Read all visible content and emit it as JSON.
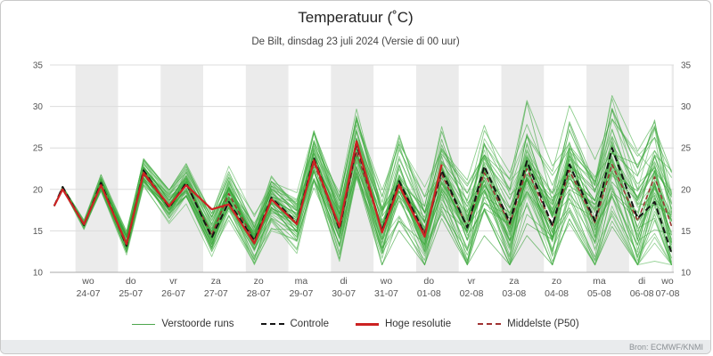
{
  "header": {
    "title": "Temperatuur (˚C)",
    "subtitle": "De Bilt, dinsdag 23 juli 2024 (Versie di 00 uur)"
  },
  "source": "Bron: ECMWF/KNMI",
  "legend": [
    {
      "label": "Verstoorde runs",
      "color": "#4ca64c",
      "style": "solid-thin"
    },
    {
      "label": "Controle",
      "color": "#141414",
      "style": "dashed"
    },
    {
      "label": "Hoge resolutie",
      "color": "#cc2222",
      "style": "solid"
    },
    {
      "label": "Middelste (P50)",
      "color": "#a03232",
      "style": "dashed-thin"
    }
  ],
  "chart_data": {
    "type": "line",
    "title": "Temperatuur (˚C)",
    "subtitle": "De Bilt, dinsdag 23 juli 2024 (Versie di 00 uur)",
    "ylabel": "Temperatuur (˚C)",
    "xlabel": "",
    "y_axis": {
      "min": 10,
      "max": 35,
      "ticks": [
        10,
        15,
        20,
        25,
        30,
        35
      ]
    },
    "x_axis": {
      "start": 23.4,
      "end": 38.05,
      "shaded_days": [
        24,
        26,
        28,
        30,
        32,
        34,
        36,
        38
      ],
      "labels": [
        {
          "day": 24,
          "weekday": "wo",
          "date": "24-07"
        },
        {
          "day": 25,
          "weekday": "do",
          "date": "25-07"
        },
        {
          "day": 26,
          "weekday": "vr",
          "date": "26-07"
        },
        {
          "day": 27,
          "weekday": "za",
          "date": "27-07"
        },
        {
          "day": 28,
          "weekday": "zo",
          "date": "28-07"
        },
        {
          "day": 29,
          "weekday": "ma",
          "date": "29-07"
        },
        {
          "day": 30,
          "weekday": "di",
          "date": "30-07"
        },
        {
          "day": 31,
          "weekday": "wo",
          "date": "31-07"
        },
        {
          "day": 32,
          "weekday": "do",
          "date": "01-08"
        },
        {
          "day": 33,
          "weekday": "vr",
          "date": "02-08"
        },
        {
          "day": 34,
          "weekday": "za",
          "date": "03-08"
        },
        {
          "day": 35,
          "weekday": "zo",
          "date": "04-08"
        },
        {
          "day": 36,
          "weekday": "ma",
          "date": "05-08"
        },
        {
          "day": 37,
          "weekday": "di",
          "date": "06-08"
        },
        {
          "day": 38,
          "weekday": "wo",
          "date": "07-08"
        }
      ]
    },
    "colors": {
      "band": "#ebebeb",
      "grid": "#dcdcdc",
      "axis": "#aaaaaa",
      "tick_text": "#555555"
    },
    "t": [
      23.5,
      23.7,
      24.2,
      24.6,
      25.2,
      25.6,
      26.2,
      26.6,
      27.2,
      27.6,
      28.2,
      28.6,
      29.2,
      29.6,
      30.2,
      30.6,
      31.2,
      31.6,
      32.2,
      32.6,
      33.2,
      33.6,
      34.2,
      34.6,
      35.2,
      35.6,
      36.2,
      36.6,
      37.2,
      37.6,
      38.0
    ],
    "series": [
      {
        "name": "Middelste (P50)",
        "color": "#a03232",
        "dash": "5 3",
        "width": 1.5,
        "y": [
          18.0,
          20.2,
          15.6,
          20.6,
          13.5,
          21.8,
          17.9,
          20.6,
          14.5,
          19.5,
          13.8,
          18.8,
          15.9,
          23.2,
          15.3,
          24.6,
          15.0,
          20.8,
          14.8,
          21.8,
          15.5,
          22.0,
          15.8,
          22.5,
          15.6,
          22.3,
          16.0,
          23.0,
          16.2,
          21.5,
          15.5
        ]
      },
      {
        "name": "Controle",
        "color": "#141414",
        "dash": "7 4",
        "width": 2,
        "y": [
          18.0,
          20.3,
          15.7,
          20.8,
          13.2,
          22.3,
          17.8,
          20.8,
          14.2,
          18.5,
          13.8,
          19.0,
          16.0,
          23.8,
          15.2,
          25.4,
          15.0,
          21.0,
          14.6,
          22.3,
          15.4,
          22.8,
          16.0,
          23.4,
          15.6,
          23.0,
          16.2,
          25.0,
          16.5,
          18.5,
          12.3
        ]
      },
      {
        "name": "Hoge resolutie",
        "color": "#cc2222",
        "dash": "",
        "width": 2.2,
        "y": [
          18.0,
          20.0,
          15.8,
          20.5,
          13.4,
          22.0,
          18.0,
          20.5,
          17.6,
          18.2,
          13.5,
          18.8,
          15.8,
          23.5,
          15.5,
          25.8,
          14.8,
          20.5,
          14.3,
          23.0,
          null,
          null,
          null,
          null,
          null,
          null,
          null,
          null,
          null,
          null,
          null
        ]
      }
    ],
    "ensemble": {
      "name": "Verstoorde runs",
      "count": 50,
      "seed": 11,
      "colors": [
        "#2f9e2f",
        "#40ad40",
        "#58b858"
      ],
      "opacity": 0.6,
      "width": 0.9,
      "spread_base": 0.45,
      "spread_growth": 0.58,
      "clamp_min": 10.9,
      "clamp_max": 32.3
    }
  }
}
